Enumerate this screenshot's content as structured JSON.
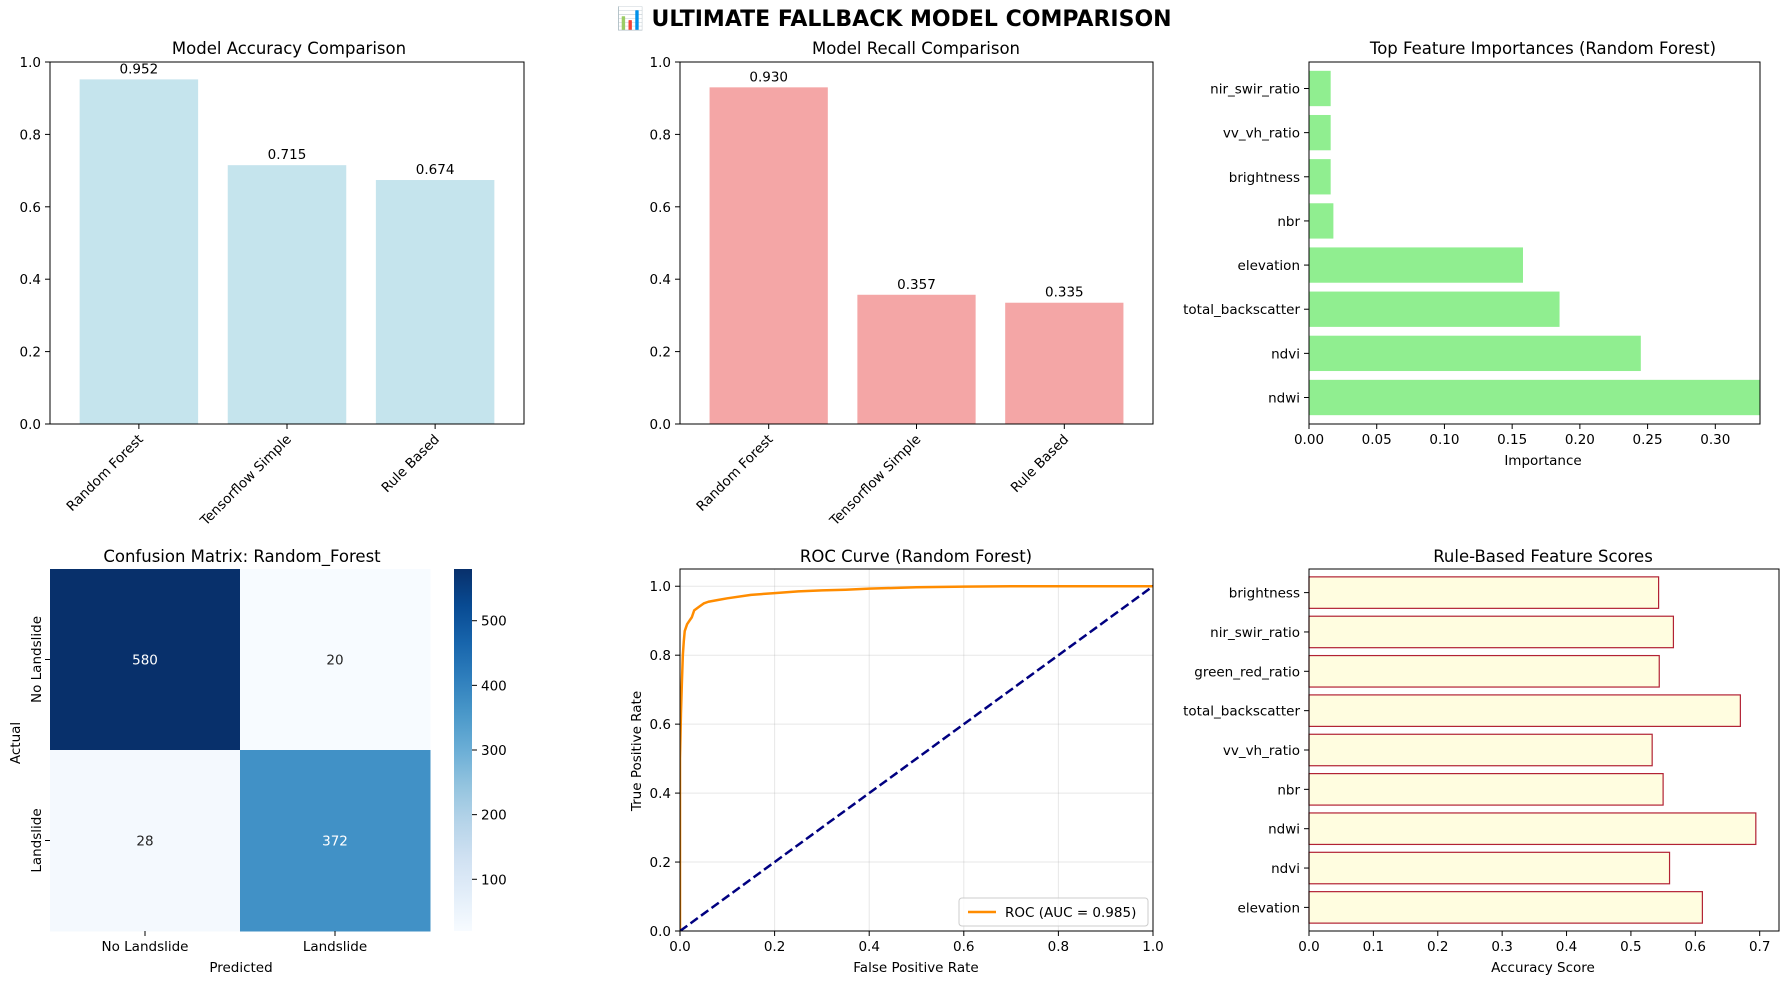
{
  "suptitle": "📊 ULTIMATE FALLBACK MODEL COMPARISON",
  "chart_data": [
    {
      "type": "bar",
      "title": "Model Accuracy Comparison",
      "categories": [
        "Random Forest",
        "Tensorflow Simple",
        "Rule Based"
      ],
      "values": [
        0.952,
        0.715,
        0.674
      ],
      "value_labels": [
        "0.952",
        "0.715",
        "0.674"
      ],
      "ylim": [
        0,
        1.0
      ],
      "yticks": [
        "0.0",
        "0.2",
        "0.4",
        "0.6",
        "0.8",
        "1.0"
      ],
      "color": "#add8e6"
    },
    {
      "type": "bar",
      "title": "Model Recall Comparison",
      "categories": [
        "Random Forest",
        "Tensorflow Simple",
        "Rule Based"
      ],
      "values": [
        0.93,
        0.357,
        0.335
      ],
      "value_labels": [
        "0.930",
        "0.357",
        "0.335"
      ],
      "ylim": [
        0,
        1.0
      ],
      "yticks": [
        "0.0",
        "0.2",
        "0.4",
        "0.6",
        "0.8",
        "1.0"
      ],
      "color": "#f08080"
    },
    {
      "type": "bar",
      "orientation": "horizontal",
      "title": "Top Feature Importances (Random Forest)",
      "xlabel": "Importance",
      "categories": [
        "ndwi",
        "ndvi",
        "total_backscatter",
        "elevation",
        "nbr",
        "brightness",
        "vv_vh_ratio",
        "nir_swir_ratio"
      ],
      "values": [
        0.333,
        0.245,
        0.185,
        0.158,
        0.018,
        0.016,
        0.016,
        0.016
      ],
      "xlim": [
        0,
        0.333
      ],
      "xticks": [
        "0.00",
        "0.05",
        "0.10",
        "0.15",
        "0.20",
        "0.25",
        "0.30"
      ],
      "color": "#90ee90"
    },
    {
      "type": "heatmap",
      "title": "Confusion Matrix: Random_Forest",
      "xlabel": "Predicted",
      "ylabel": "Actual",
      "x_labels": [
        "No Landslide",
        "Landslide"
      ],
      "y_labels": [
        "No Landslide",
        "Landslide"
      ],
      "values": [
        [
          580,
          20
        ],
        [
          28,
          372
        ]
      ],
      "cell_labels": [
        [
          "580",
          "20"
        ],
        [
          "28",
          "372"
        ]
      ],
      "colorbar_range": [
        20,
        580
      ],
      "colorbar_ticks": [
        "100",
        "200",
        "300",
        "400",
        "500"
      ],
      "colormap": "Blues"
    },
    {
      "type": "line",
      "title": "ROC Curve (Random Forest)",
      "xlabel": "False Positive Rate",
      "ylabel": "True Positive Rate",
      "xlim": [
        0,
        1.0
      ],
      "ylim": [
        0,
        1.05
      ],
      "xticks": [
        "0.0",
        "0.2",
        "0.4",
        "0.6",
        "0.8",
        "1.0"
      ],
      "yticks": [
        "0.0",
        "0.2",
        "0.4",
        "0.6",
        "0.8",
        "1.0"
      ],
      "grid": true,
      "legend": "lower right",
      "series": [
        {
          "name": "ROC (AUC = 0.985)",
          "color": "#ff8c00",
          "x": [
            0,
            0.0,
            0.002,
            0.004,
            0.006,
            0.008,
            0.01,
            0.015,
            0.02,
            0.025,
            0.03,
            0.04,
            0.05,
            0.06,
            0.08,
            0.1,
            0.15,
            0.2,
            0.25,
            0.3,
            0.35,
            0.4,
            0.45,
            0.5,
            0.6,
            0.7,
            0.8,
            0.9,
            1.0
          ],
          "y": [
            0,
            0.5,
            0.63,
            0.72,
            0.8,
            0.84,
            0.87,
            0.89,
            0.9,
            0.91,
            0.93,
            0.94,
            0.95,
            0.955,
            0.96,
            0.965,
            0.975,
            0.98,
            0.985,
            0.988,
            0.99,
            0.993,
            0.995,
            0.997,
            0.999,
            1.0,
            1.0,
            1.0,
            1.0
          ]
        },
        {
          "name": "",
          "style": "dashed",
          "color": "#000080",
          "x": [
            0,
            1
          ],
          "y": [
            0,
            1
          ]
        }
      ]
    },
    {
      "type": "bar",
      "orientation": "horizontal",
      "title": "Rule-Based Feature Scores",
      "xlabel": "Accuracy Score",
      "categories": [
        "elevation",
        "ndvi",
        "ndwi",
        "nbr",
        "vv_vh_ratio",
        "total_backscatter",
        "green_red_ratio",
        "nir_swir_ratio",
        "brightness"
      ],
      "values": [
        0.611,
        0.56,
        0.694,
        0.55,
        0.533,
        0.67,
        0.544,
        0.566,
        0.543
      ],
      "xlim": [
        0,
        0.73
      ],
      "xticks": [
        "0.0",
        "0.1",
        "0.2",
        "0.3",
        "0.4",
        "0.5",
        "0.6",
        "0.7"
      ],
      "color": "#fffde0",
      "edgecolor": "#b22234"
    }
  ]
}
